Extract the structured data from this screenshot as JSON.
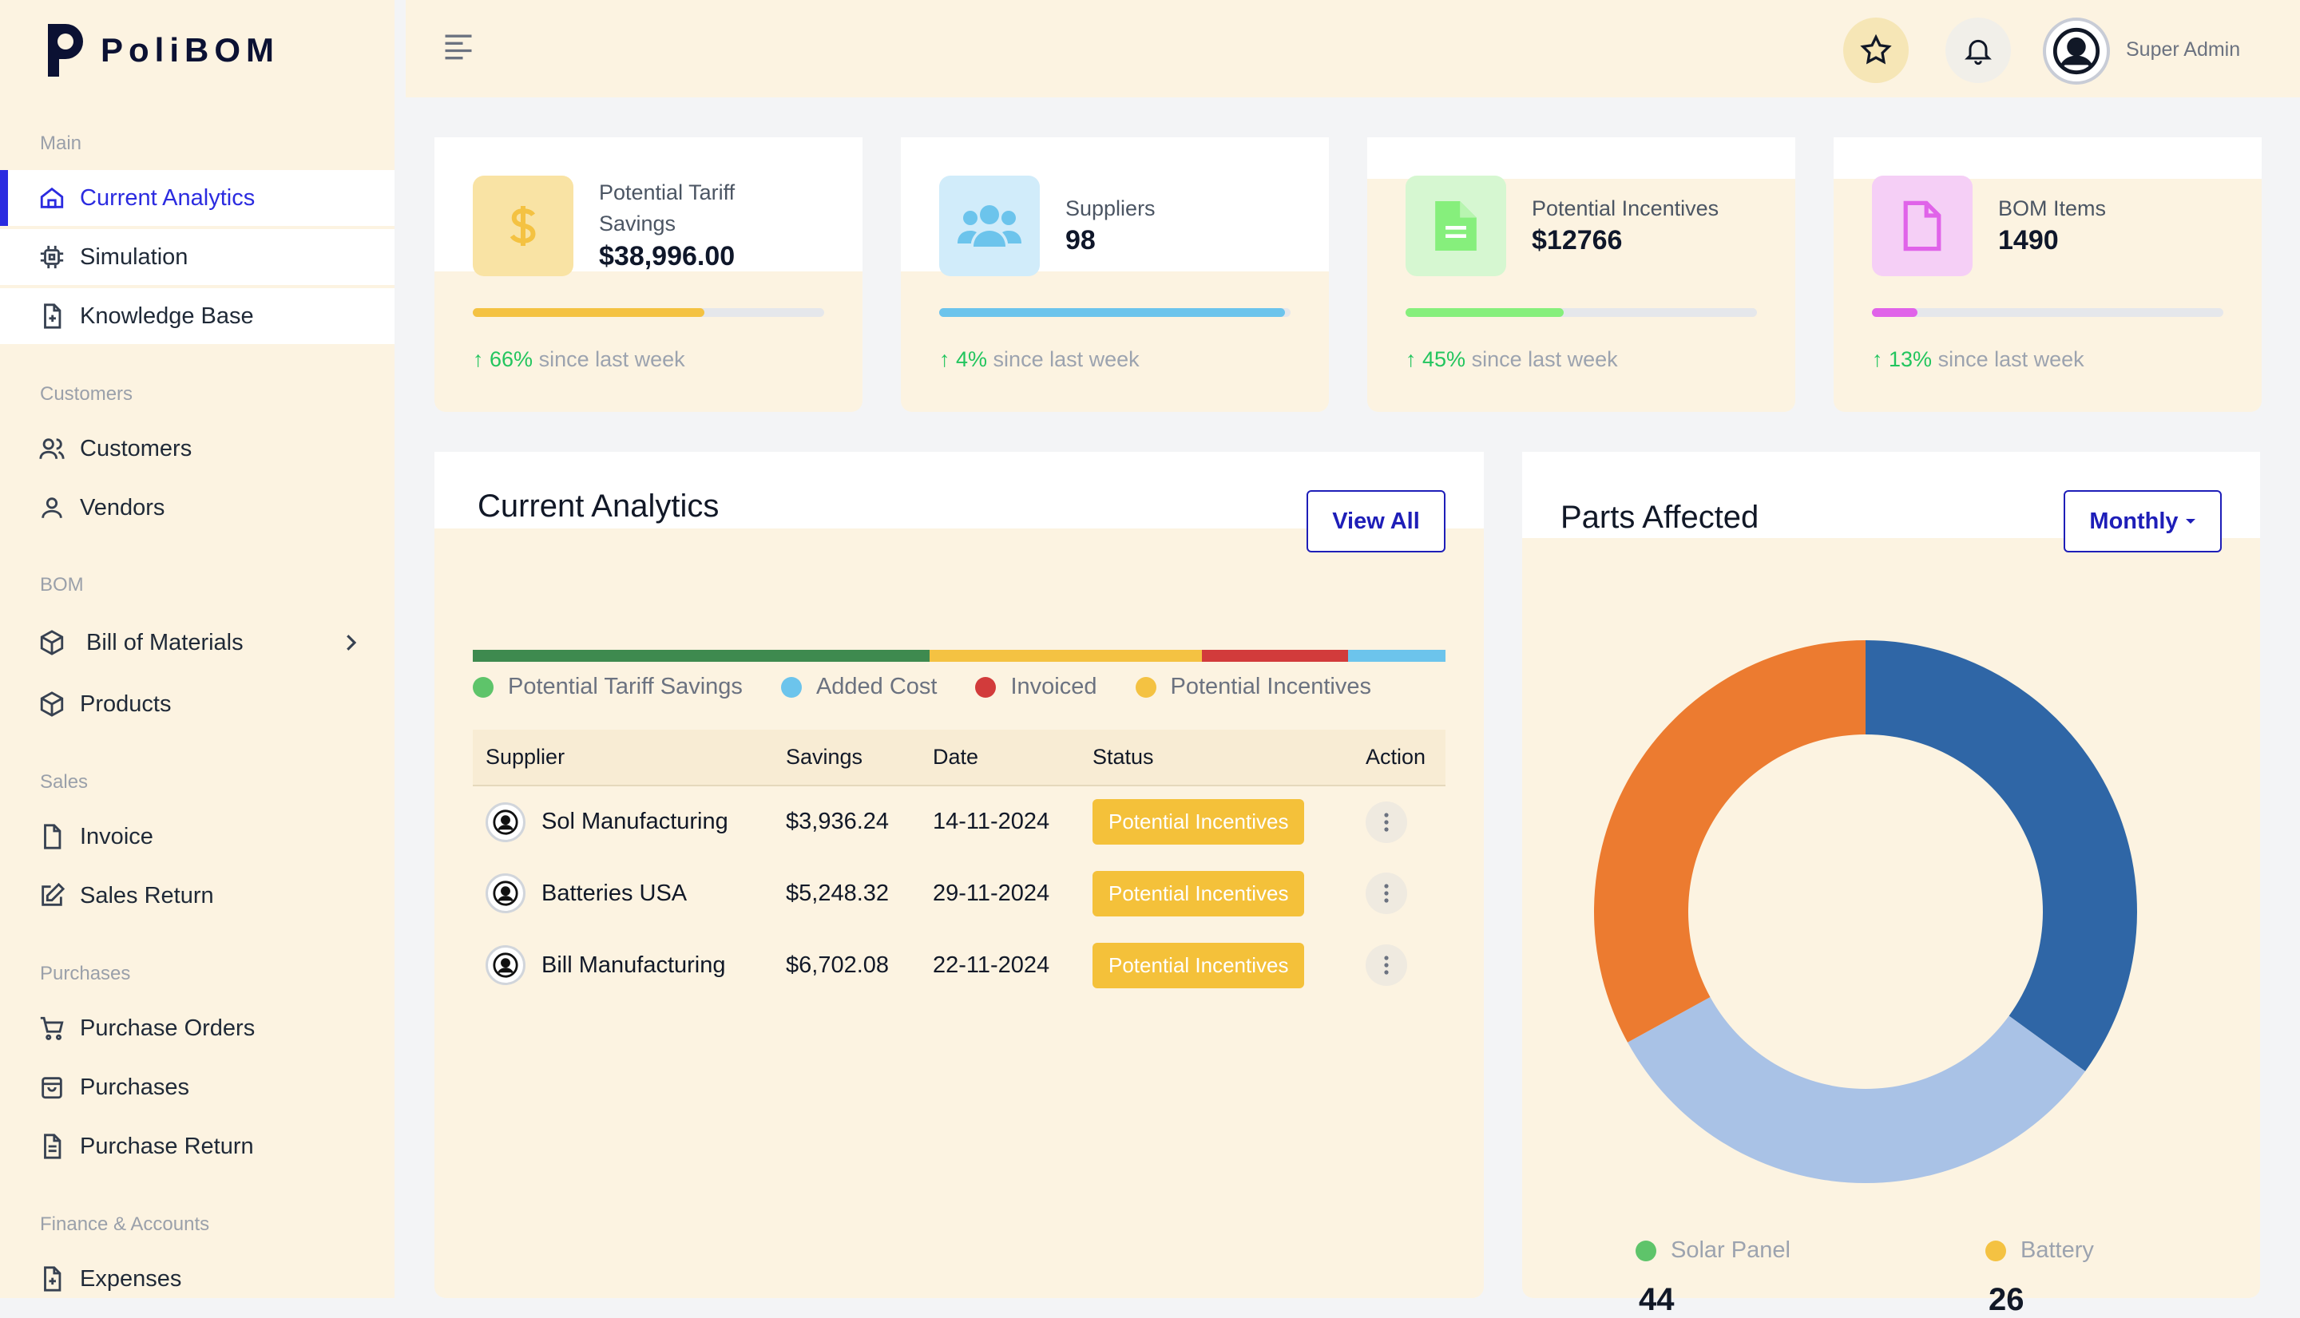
{
  "app": {
    "brand": "PoliBOM"
  },
  "sidebar": {
    "sections": [
      {
        "title": "Main",
        "items": [
          {
            "label": "Current Analytics",
            "icon": "home-icon"
          },
          {
            "label": "Simulation",
            "icon": "cpu-icon"
          },
          {
            "label": "Knowledge Base",
            "icon": "file-plus-icon"
          }
        ]
      },
      {
        "title": "Customers",
        "items": [
          {
            "label": "Customers",
            "icon": "users-icon"
          },
          {
            "label": "Vendors",
            "icon": "user-icon"
          }
        ]
      },
      {
        "title": "BOM",
        "items": [
          {
            "label": "Bill of Materials",
            "icon": "box-icon"
          },
          {
            "label": "Products",
            "icon": "box-icon"
          }
        ]
      },
      {
        "title": "Sales",
        "items": [
          {
            "label": "Invoice",
            "icon": "file-icon"
          },
          {
            "label": "Sales Return",
            "icon": "edit-icon"
          }
        ]
      },
      {
        "title": "Purchases",
        "items": [
          {
            "label": "Purchase Orders",
            "icon": "cart-icon"
          },
          {
            "label": "Purchases",
            "icon": "bag-icon"
          },
          {
            "label": "Purchase Return",
            "icon": "file-text-icon"
          }
        ]
      },
      {
        "title": "Finance & Accounts",
        "items": [
          {
            "label": "Expenses",
            "icon": "file-plus-icon"
          }
        ]
      }
    ]
  },
  "topbar": {
    "username": "Super Admin"
  },
  "stats": [
    {
      "label_line1": "Potential Tariff",
      "label_line2": "Savings",
      "value": "$38,996.00",
      "progress": 0.66,
      "color": "#f4c242",
      "icon_bg": "#f9e3a4",
      "icon": "dollar-icon",
      "trend_pct": "66%",
      "trend_text": " since last week"
    },
    {
      "label_line1": "Suppliers",
      "label_line2": "",
      "value": "98",
      "progress": 0.985,
      "color": "#6cc4ec",
      "icon_bg": "#d1ecfa",
      "icon": "users-icon",
      "trend_pct": "4%",
      "trend_text": " since last week"
    },
    {
      "label_line1": "Potential Incentives",
      "label_line2": "",
      "value": "$12766",
      "progress": 0.45,
      "color": "#86ef7c",
      "icon_bg": "#d6f7d1",
      "icon": "document-icon",
      "trend_pct": "45%",
      "trend_text": " since last week"
    },
    {
      "label_line1": "BOM Items",
      "label_line2": "",
      "value": "1490",
      "progress": 0.13,
      "color": "#e063e9",
      "icon_bg": "#f5cff6",
      "icon": "file-icon",
      "trend_pct": "13%",
      "trend_text": " since last week"
    }
  ],
  "analytics": {
    "title": "Current Analytics",
    "view_all": "View All",
    "bar_segments": [
      {
        "name": "Potential Tariff Savings",
        "share": 0.47,
        "color": "#3e8a4f"
      },
      {
        "name": "Potential Incentives",
        "share": 0.28,
        "color": "#f4c242"
      },
      {
        "name": "Invoiced",
        "share": 0.15,
        "color": "#d23b3b"
      },
      {
        "name": "Added Cost",
        "share": 0.1,
        "color": "#6cc4ec"
      }
    ],
    "legend": [
      {
        "label": "Potential Tariff Savings",
        "color": "#5ec46a"
      },
      {
        "label": "Added Cost",
        "color": "#6cc4ec"
      },
      {
        "label": "Invoiced",
        "color": "#d23b3b"
      },
      {
        "label": "Potential Incentives",
        "color": "#f4c242"
      }
    ],
    "columns": [
      "Supplier",
      "Savings",
      "Date",
      "Status",
      "Action"
    ],
    "rows": [
      {
        "supplier": "Sol Manufacturing",
        "savings": "$3,936.24",
        "date": "14-11-2024",
        "status": "Potential Incentives"
      },
      {
        "supplier": "Batteries USA",
        "savings": "$5,248.32",
        "date": "29-11-2024",
        "status": "Potential Incentives"
      },
      {
        "supplier": "Bill Manufacturing",
        "savings": "$6,702.08",
        "date": "22-11-2024",
        "status": "Potential Incentives"
      }
    ]
  },
  "parts": {
    "title": "Parts Affected",
    "period": "Monthly",
    "legend": [
      {
        "label": "Solar Panel",
        "color": "#5ec46a",
        "value": "44"
      },
      {
        "label": "Battery",
        "color": "#f4c242",
        "value": "26"
      }
    ]
  },
  "chart_data": {
    "type": "pie",
    "title": "Parts Affected",
    "slices": [
      {
        "value": 35,
        "color": "#2f66a6"
      },
      {
        "value": 32,
        "color": "#a9c2e6"
      },
      {
        "value": 33,
        "color": "#ec7b30"
      }
    ]
  }
}
